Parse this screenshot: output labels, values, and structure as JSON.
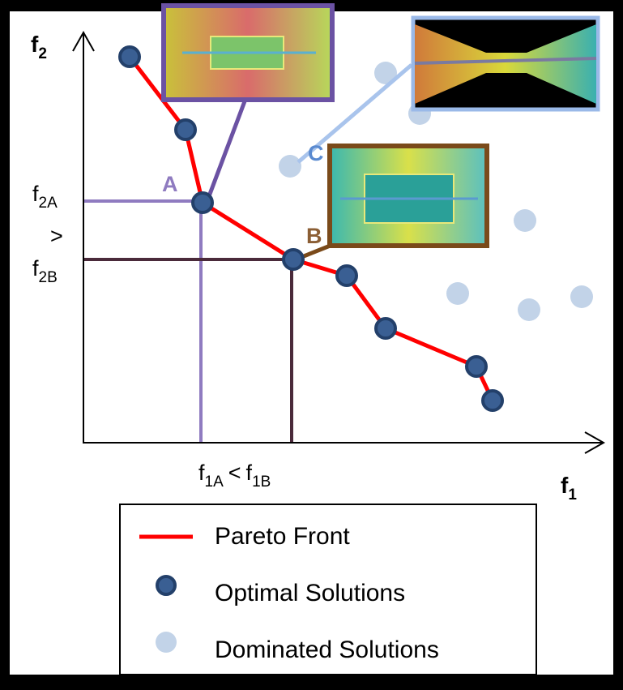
{
  "axes": {
    "y_label": {
      "text": "f",
      "sub": "2"
    },
    "x_label": {
      "text": "f",
      "sub": "1"
    }
  },
  "y_annotations": {
    "upper": {
      "text": "f",
      "sub": "2A"
    },
    "relation": ">",
    "lower": {
      "text": "f",
      "sub": "2B"
    }
  },
  "x_annotation": {
    "left": {
      "text": "f",
      "sub": "1A"
    },
    "relation": "<",
    "right": {
      "text": "f",
      "sub": "1B"
    }
  },
  "point_labels": {
    "a": "A",
    "b": "B",
    "c": "C"
  },
  "legend": [
    "Pareto Front",
    "Optimal Solutions",
    "Dominated Solutions"
  ]
}
